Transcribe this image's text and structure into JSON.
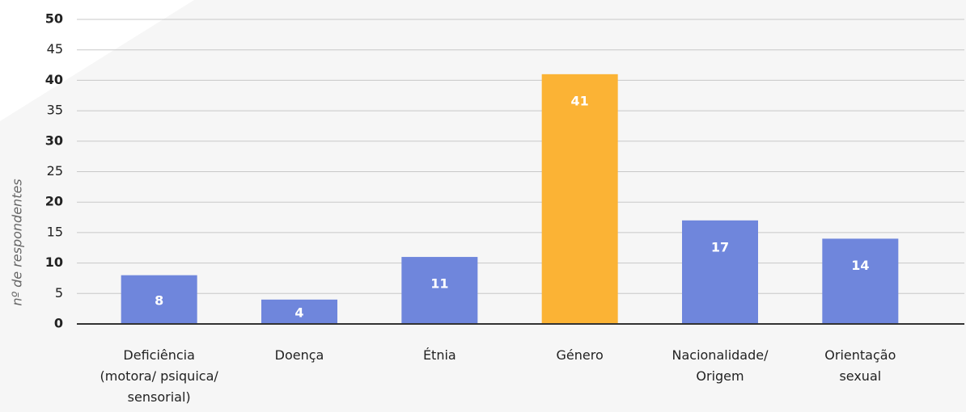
{
  "chart_data": {
    "type": "bar",
    "y_label": "nº de respondentes",
    "categories": [
      "Deficiência\n(motora/ psiquica/\nsensorial)",
      "Doença",
      "Étnia",
      "Género",
      "Nacionalidade/\nOrigem",
      "Orientação\nsexual"
    ],
    "values": [
      8,
      4,
      11,
      41,
      17,
      14
    ],
    "colors": [
      "#6f86dc",
      "#6f86dc",
      "#6f86dc",
      "#fbb335",
      "#6f86dc",
      "#6f86dc"
    ],
    "ylim": [
      0,
      50
    ],
    "yticks": [
      0,
      5,
      10,
      15,
      20,
      25,
      30,
      35,
      40,
      45,
      50
    ],
    "grid": true
  }
}
